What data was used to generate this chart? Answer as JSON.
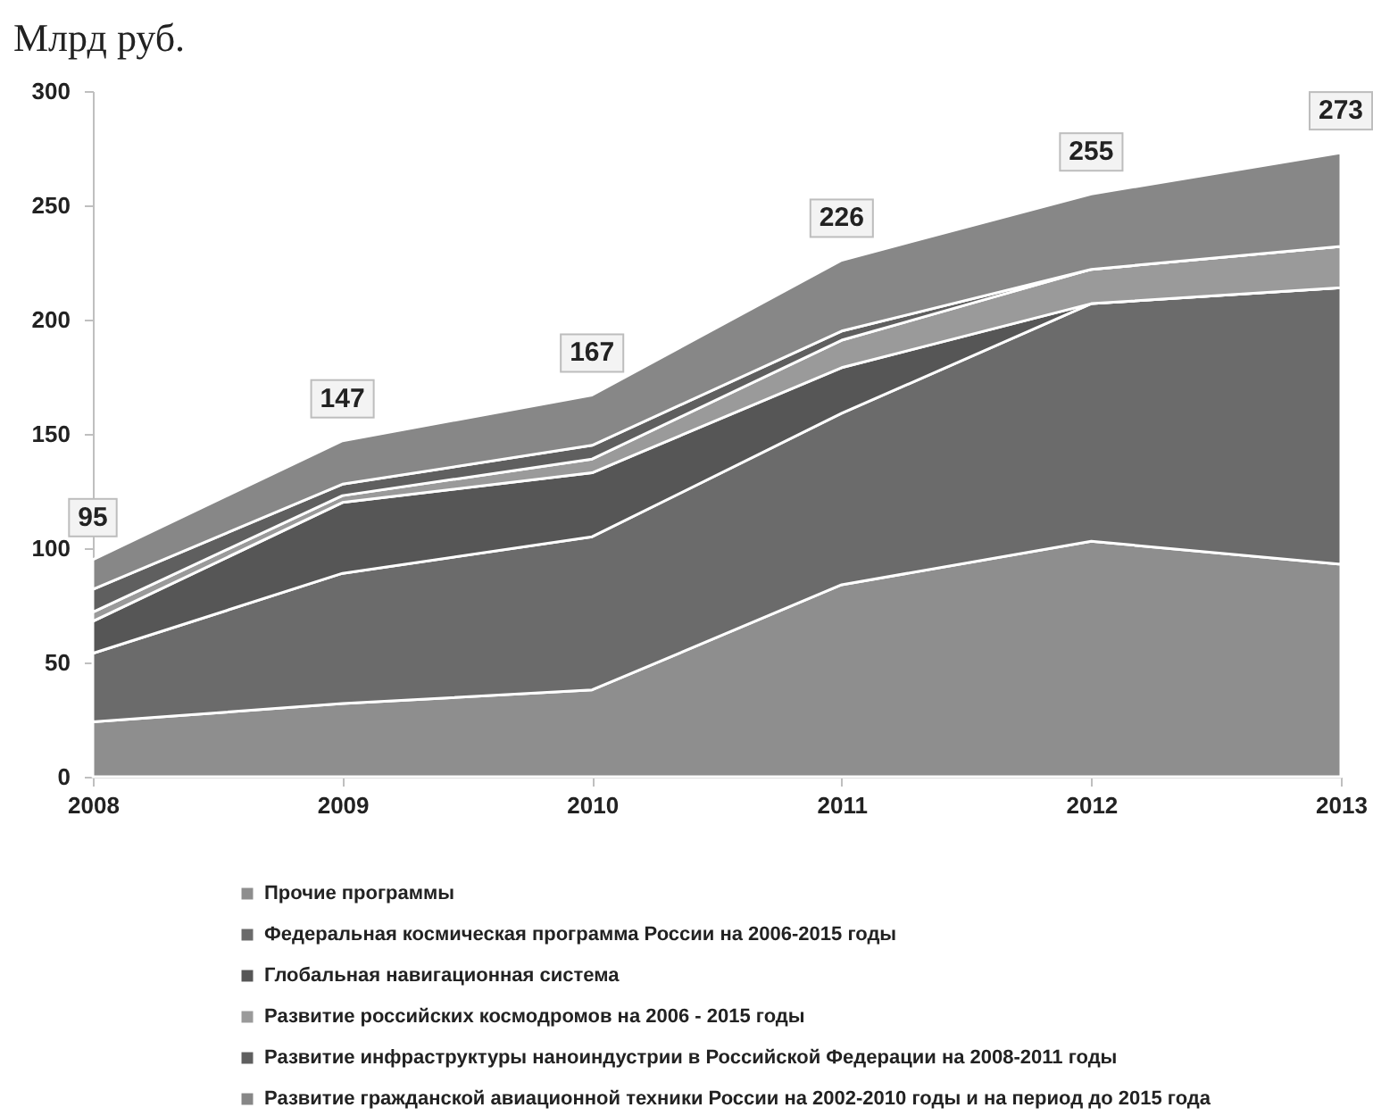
{
  "chart_data": {
    "type": "area",
    "ylabel": "Млрд руб.",
    "categories": [
      "2008",
      "2009",
      "2010",
      "2011",
      "2012",
      "2013"
    ],
    "stacked": true,
    "ylim": [
      0,
      300
    ],
    "yticks": [
      0,
      50,
      100,
      150,
      200,
      250,
      300
    ],
    "grid": false,
    "legend": "bottom",
    "totals": [
      "95",
      "147",
      "167",
      "226",
      "255",
      "273"
    ],
    "series": [
      {
        "name": "Прочие программы",
        "color": "#8e8e8e",
        "values": [
          24,
          32,
          38,
          84,
          103,
          93
        ]
      },
      {
        "name": "Федеральная космическая программа России на 2006-2015 годы",
        "color": "#6b6b6b",
        "values": [
          30,
          57,
          67,
          75,
          104,
          121
        ]
      },
      {
        "name": "Глобальная навигационная система",
        "color": "#565656",
        "values": [
          14,
          31,
          28,
          20,
          0,
          0
        ]
      },
      {
        "name": "Развитие российских космодромов на 2006 - 2015 годы",
        "color": "#9a9a9a",
        "values": [
          4,
          3,
          6,
          12,
          15,
          18
        ]
      },
      {
        "name": "Развитие инфраструктуры наноиндустрии в Российской Федерации на 2008-2011 годы",
        "color": "#5f5f5f",
        "values": [
          10,
          5,
          6,
          4,
          0,
          0
        ]
      },
      {
        "name": "Развитие гражданской авиационной техники России на 2002-2010 годы и на период до 2015 года",
        "color": "#878787",
        "values": [
          13,
          19,
          22,
          31,
          33,
          41
        ]
      }
    ]
  }
}
